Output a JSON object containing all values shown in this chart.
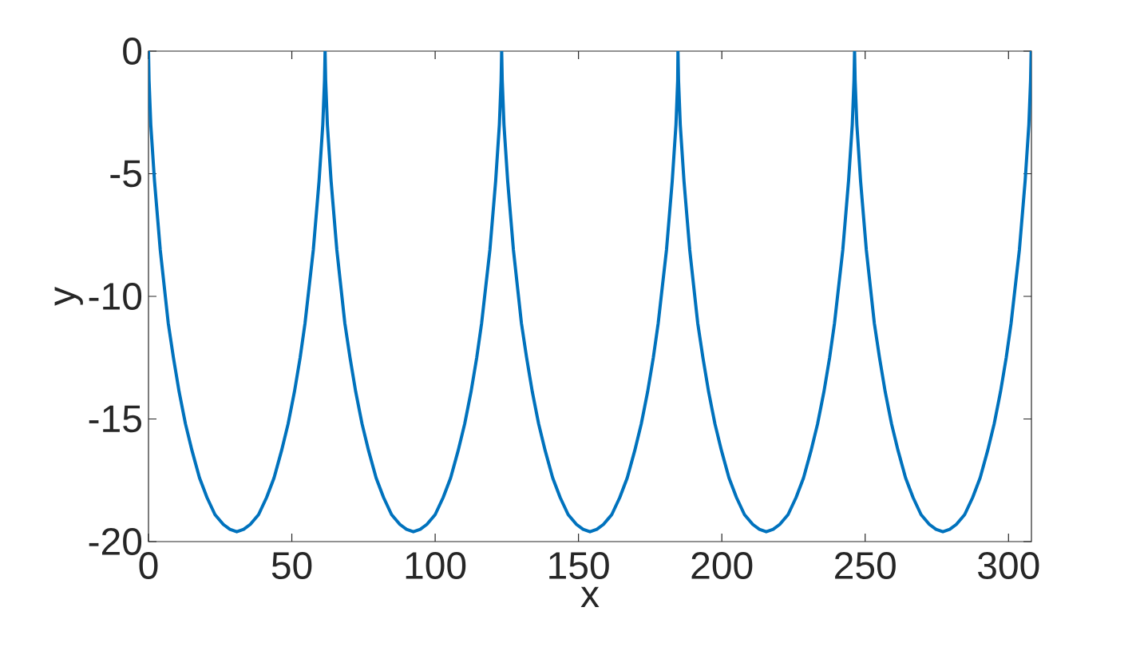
{
  "chart_data": {
    "type": "line",
    "xlabel": "x",
    "ylabel": "y",
    "xlim": [
      0,
      308
    ],
    "ylim": [
      -20,
      0
    ],
    "xticks": [
      0,
      50,
      100,
      150,
      200,
      250,
      300
    ],
    "yticks": [
      -20,
      -15,
      -10,
      -5,
      0
    ],
    "series": [
      {
        "color": "#0072bd",
        "x": [
          0,
          0.2,
          0.8,
          2.1,
          4.1,
          6.9,
          8.7,
          10.7,
          12.9,
          15.2,
          17.8,
          20.4,
          23.2,
          26.1,
          28.4,
          30.8,
          33.2,
          35.5,
          38.4,
          41.2,
          43.8,
          46.4,
          48.7,
          50.9,
          52.9,
          54.6,
          57.5,
          59.5,
          60.8,
          61.4,
          61.6,
          61.8,
          62.4,
          63.7,
          65.7,
          68.5,
          70.3,
          72.3,
          74.5,
          76.8,
          79.4,
          82.0,
          84.8,
          87.7,
          90.0,
          92.4,
          94.8,
          97.1,
          100.0,
          102.8,
          105.4,
          108.0,
          110.3,
          112.5,
          114.5,
          116.2,
          119.1,
          121.1,
          122.4,
          123.0,
          123.2,
          123.4,
          124.0,
          125.3,
          127.3,
          130.1,
          131.9,
          133.9,
          136.1,
          138.4,
          141.0,
          143.6,
          146.4,
          149.3,
          151.6,
          154.0,
          156.4,
          158.7,
          161.6,
          164.4,
          167.0,
          169.6,
          171.9,
          174.1,
          176.1,
          177.8,
          180.7,
          182.7,
          184.0,
          184.6,
          184.7,
          184.9,
          185.5,
          186.8,
          188.8,
          191.6,
          193.4,
          195.4,
          197.6,
          199.9,
          202.5,
          205.1,
          207.9,
          210.8,
          213.1,
          215.5,
          217.9,
          220.2,
          223.1,
          225.9,
          228.5,
          231.1,
          233.4,
          235.6,
          237.6,
          239.3,
          242.2,
          244.2,
          245.5,
          246.1,
          246.3,
          246.5,
          247.1,
          248.4,
          250.4,
          253.2,
          255.0,
          257.0,
          259.2,
          261.5,
          264.1,
          266.7,
          269.5,
          272.4,
          274.7,
          277.1,
          279.5,
          281.8,
          284.7,
          287.5,
          290.1,
          292.7,
          295.0,
          297.2,
          299.2,
          300.9,
          303.8,
          305.8,
          307.1,
          307.7,
          307.9
        ],
        "values": [
          0,
          -1.2,
          -3.0,
          -5.3,
          -8.1,
          -11.1,
          -12.5,
          -13.9,
          -15.2,
          -16.3,
          -17.4,
          -18.2,
          -18.9,
          -19.3,
          -19.5,
          -19.6,
          -19.5,
          -19.3,
          -18.9,
          -18.2,
          -17.4,
          -16.3,
          -15.2,
          -13.9,
          -12.5,
          -11.1,
          -8.1,
          -5.3,
          -3.0,
          -1.2,
          0,
          -1.2,
          -3.0,
          -5.3,
          -8.1,
          -11.1,
          -12.5,
          -13.9,
          -15.2,
          -16.3,
          -17.4,
          -18.2,
          -18.9,
          -19.3,
          -19.5,
          -19.6,
          -19.5,
          -19.3,
          -18.9,
          -18.2,
          -17.4,
          -16.3,
          -15.2,
          -13.9,
          -12.5,
          -11.1,
          -8.1,
          -5.3,
          -3.0,
          -1.2,
          0,
          -1.2,
          -3.0,
          -5.3,
          -8.1,
          -11.1,
          -12.5,
          -13.9,
          -15.2,
          -16.3,
          -17.4,
          -18.2,
          -18.9,
          -19.3,
          -19.5,
          -19.6,
          -19.5,
          -19.3,
          -18.9,
          -18.2,
          -17.4,
          -16.3,
          -15.2,
          -13.9,
          -12.5,
          -11.1,
          -8.1,
          -5.3,
          -3.0,
          -1.2,
          0,
          -1.2,
          -3.0,
          -5.3,
          -8.1,
          -11.1,
          -12.5,
          -13.9,
          -15.2,
          -16.3,
          -17.4,
          -18.2,
          -18.9,
          -19.3,
          -19.5,
          -19.6,
          -19.5,
          -19.3,
          -18.9,
          -18.2,
          -17.4,
          -16.3,
          -15.2,
          -13.9,
          -12.5,
          -11.1,
          -8.1,
          -5.3,
          -3.0,
          -1.2,
          0,
          -1.2,
          -3.0,
          -5.3,
          -8.1,
          -11.1,
          -12.5,
          -13.9,
          -15.2,
          -16.3,
          -17.4,
          -18.2,
          -18.9,
          -19.3,
          -19.5,
          -19.6,
          -19.5,
          -19.3,
          -18.9,
          -18.2,
          -17.4,
          -16.3,
          -15.2,
          -13.9,
          -12.5,
          -11.1,
          -8.1,
          -5.3,
          -3.0,
          -1.2,
          0
        ]
      }
    ]
  }
}
